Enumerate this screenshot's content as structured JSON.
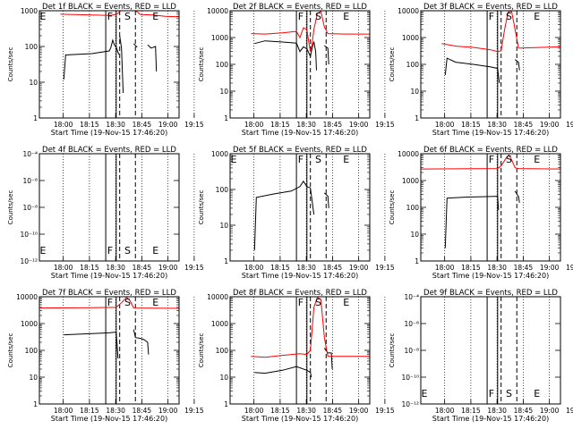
{
  "chart_data": [
    {
      "type": "line",
      "panel": 1,
      "title": "Det 1f BLACK = Events, RED = LLD",
      "xlabel": "Start Time (19-Nov-15 17:46:20)",
      "ylabel": "Counts/sec",
      "scale": "log",
      "ylim": [
        1,
        1000
      ],
      "yticks": [
        "1",
        "10",
        "100",
        "1000"
      ],
      "xticks": [
        "18:00",
        "18:15",
        "18:30",
        "18:45",
        "19:00",
        "19:15"
      ],
      "marker_labels": [
        "E",
        "F",
        "S",
        "E"
      ],
      "series": [
        {
          "name": "Events",
          "color": "#000000",
          "segments": [
            [
              [
                14.0,
                12
              ],
              [
                15.0,
                58
              ],
              [
                30.0,
                63
              ],
              [
                40.0,
                75
              ],
              [
                41.0,
                95
              ],
              [
                42.0,
                150
              ],
              [
                43.0,
                110
              ],
              [
                44.0,
                95
              ],
              [
                45.5,
                60
              ]
            ],
            [
              [
                46.0,
                200
              ],
              [
                47.0,
                90
              ],
              [
                48.0,
                5
              ]
            ],
            [
              [
                54.0,
                120
              ],
              [
                56.0,
                95
              ]
            ],
            [
              [
                62.0,
                110
              ],
              [
                64.0,
                90
              ],
              [
                66.5,
                100
              ],
              [
                67.0,
                20
              ]
            ]
          ]
        },
        {
          "name": "LLD",
          "color": "#ff0000",
          "segments": [
            [
              [
                12.0,
                800
              ],
              [
                20.0,
                780
              ],
              [
                30.0,
                760
              ],
              [
                40.0,
                740
              ],
              [
                43.0,
                770
              ],
              [
                45.0,
                850
              ],
              [
                46.0,
                950
              ],
              [
                46.5,
                1000
              ]
            ],
            [
              [
                55.0,
                1000
              ],
              [
                58.0,
                780
              ],
              [
                65.0,
                760
              ],
              [
                72.0,
                700
              ],
              [
                80.0,
                680
              ]
            ]
          ]
        }
      ]
    },
    {
      "type": "line",
      "panel": 2,
      "title": "Det 2f BLACK = Events, RED = LLD",
      "xlabel": "Start Time (19-Nov-15 17:46:20)",
      "ylabel": "Counts/sec",
      "scale": "log",
      "ylim": [
        1,
        10000
      ],
      "yticks": [
        "1",
        "10",
        "100",
        "1000",
        "10000"
      ],
      "xticks": [
        "18:00",
        "18:15",
        "18:30",
        "18:45",
        "19:00",
        "19:15"
      ],
      "marker_labels": [
        "F",
        "S",
        "E"
      ],
      "series": [
        {
          "name": "Events",
          "color": "#000000",
          "segments": [
            [
              [
                14.0,
                600
              ],
              [
                20.0,
                750
              ],
              [
                30.0,
                680
              ],
              [
                38.0,
                620
              ],
              [
                40.0,
                300
              ],
              [
                42.0,
                450
              ],
              [
                44.0,
                380
              ],
              [
                46.0,
                200
              ],
              [
                47.0,
                400
              ],
              [
                48.0,
                700
              ],
              [
                49.0,
                300
              ],
              [
                49.5,
                60
              ]
            ],
            [
              [
                54.0,
                500
              ],
              [
                56.0,
                400
              ],
              [
                56.5,
                100
              ]
            ]
          ]
        },
        {
          "name": "LLD",
          "color": "#ff0000",
          "segments": [
            [
              [
                12.0,
                1400
              ],
              [
                20.0,
                1350
              ],
              [
                30.0,
                1500
              ],
              [
                38.0,
                1700
              ],
              [
                40.0,
                1000
              ],
              [
                42.0,
                2300
              ],
              [
                44.0,
                2000
              ],
              [
                45.0,
                700
              ],
              [
                46.0,
                300
              ],
              [
                47.0,
                600
              ],
              [
                48.0,
                2000
              ],
              [
                50.0,
                8000
              ],
              [
                52.0,
                9500
              ],
              [
                54.0,
                2500
              ],
              [
                56.0,
                1400
              ],
              [
                65.0,
                1350
              ],
              [
                80.0,
                1350
              ]
            ]
          ]
        }
      ]
    },
    {
      "type": "line",
      "panel": 3,
      "title": "Det 3f BLACK = Events, RED = LLD",
      "xlabel": "Start Time (19-Nov-15 17:46:20)",
      "ylabel": "Counts/sec",
      "scale": "log",
      "ylim": [
        1,
        10000
      ],
      "yticks": [
        "1",
        "10",
        "100",
        "1000",
        "10000"
      ],
      "xticks": [
        "18:00",
        "18:15",
        "18:30",
        "18:45",
        "19:00",
        "19:15"
      ],
      "marker_labels": [
        "F",
        "S",
        "E"
      ],
      "series": [
        {
          "name": "Events",
          "color": "#000000",
          "segments": [
            [
              [
                14.0,
                40
              ],
              [
                15.0,
                170
              ],
              [
                20.0,
                120
              ],
              [
                30.0,
                100
              ],
              [
                40.0,
                80
              ],
              [
                44.0,
                70
              ],
              [
                45.0,
                20
              ]
            ],
            [
              [
                54.0,
                150
              ],
              [
                56.0,
                120
              ],
              [
                56.5,
                60
              ]
            ]
          ]
        },
        {
          "name": "LLD",
          "color": "#ff0000",
          "segments": [
            [
              [
                12.0,
                600
              ],
              [
                20.0,
                480
              ],
              [
                30.0,
                430
              ],
              [
                40.0,
                350
              ],
              [
                44.0,
                300
              ],
              [
                46.0,
                320
              ],
              [
                48.0,
                2000
              ],
              [
                50.0,
                9000
              ],
              [
                52.0,
                9500
              ],
              [
                54.0,
                2000
              ],
              [
                56.0,
                400
              ],
              [
                65.0,
                420
              ],
              [
                80.0,
                450
              ]
            ]
          ]
        }
      ]
    },
    {
      "type": "line",
      "panel": 4,
      "title": "Det 4f BLACK = Events, RED = LLD",
      "xlabel": "Start Time (19-Nov-15 17:46:20)",
      "ylabel": "Counts/sec",
      "scale": "log",
      "ylim": [
        -12,
        -4
      ],
      "yticks": [
        "10⁻¹²",
        "10⁻¹⁰",
        "10⁻⁸",
        "10⁻⁶",
        "10⁻⁴"
      ],
      "xticks": [
        "18:00",
        "18:15",
        "18:30",
        "18:45",
        "19:00",
        "19:15"
      ],
      "marker_labels": [
        "E",
        "F",
        "S",
        "E"
      ],
      "series": []
    },
    {
      "type": "line",
      "panel": 5,
      "title": "Det 5f BLACK = Events, RED = LLD",
      "xlabel": "Start Time (19-Nov-15 17:46:20)",
      "ylabel": "Counts/sec",
      "scale": "log",
      "ylim": [
        1,
        1000
      ],
      "yticks": [
        "1",
        "10",
        "100",
        "1000"
      ],
      "xticks": [
        "18:00",
        "18:15",
        "18:30",
        "18:45",
        "19:00",
        "19:15"
      ],
      "marker_labels": [
        "E",
        "F",
        "S",
        "E"
      ],
      "series": [
        {
          "name": "Events",
          "color": "#000000",
          "segments": [
            [
              [
                14.0,
                2
              ],
              [
                15.0,
                60
              ],
              [
                25.0,
                75
              ],
              [
                35.0,
                90
              ],
              [
                40.0,
                120
              ],
              [
                42.0,
                170
              ],
              [
                44.0,
                120
              ],
              [
                46.0,
                110
              ],
              [
                48.0,
                20
              ]
            ],
            [
              [
                54.0,
                80
              ],
              [
                56.0,
                65
              ],
              [
                56.5,
                30
              ]
            ]
          ]
        }
      ]
    },
    {
      "type": "line",
      "panel": 6,
      "title": "Det 6f BLACK = Events, RED = LLD",
      "xlabel": "Start Time (19-Nov-15 17:46:20)",
      "ylabel": "Counts/sec",
      "scale": "log",
      "ylim": [
        1,
        10000
      ],
      "yticks": [
        "1",
        "10",
        "100",
        "1000",
        "10000"
      ],
      "xticks": [
        "18:00",
        "18:15",
        "18:30",
        "18:45",
        "19:00",
        "19:15"
      ],
      "marker_labels": [
        "F",
        "S",
        "E"
      ],
      "series": [
        {
          "name": "Events",
          "color": "#000000",
          "segments": [
            [
              [
                14.0,
                3
              ],
              [
                15.0,
                220
              ],
              [
                25.0,
                240
              ],
              [
                35.0,
                250
              ],
              [
                44.0,
                260
              ],
              [
                44.5,
                80
              ]
            ],
            [
              [
                54.0,
                400
              ],
              [
                56.0,
                250
              ],
              [
                56.5,
                150
              ]
            ]
          ]
        },
        {
          "name": "LLD",
          "color": "#ff0000",
          "segments": [
            [
              [
                0.0,
                2700
              ],
              [
                30.0,
                2750
              ],
              [
                44.0,
                2800
              ],
              [
                46.0,
                3500
              ],
              [
                49.0,
                7000
              ],
              [
                50.5,
                9000
              ],
              [
                52.0,
                6000
              ],
              [
                54.0,
                3000
              ],
              [
                56.0,
                2800
              ],
              [
                80.0,
                2700
              ]
            ]
          ]
        }
      ]
    },
    {
      "type": "line",
      "panel": 7,
      "title": "Det 7f BLACK = Events, RED = LLD",
      "xlabel": "Start Time (19-Nov-15 17:46:20)",
      "ylabel": "Counts/sec",
      "scale": "log",
      "ylim": [
        1,
        10000
      ],
      "yticks": [
        "1",
        "10",
        "100",
        "1000",
        "10000"
      ],
      "xticks": [
        "18:00",
        "18:15",
        "18:30",
        "18:45",
        "19:00",
        "19:15"
      ],
      "marker_labels": [
        "F",
        "S",
        "E"
      ],
      "series": [
        {
          "name": "Events",
          "color": "#000000",
          "segments": [
            [
              [
                14.0,
                380
              ],
              [
                30.0,
                420
              ],
              [
                40.0,
                450
              ],
              [
                44.0,
                480
              ],
              [
                45.0,
                50
              ]
            ],
            [
              [
                54.0,
                600
              ],
              [
                55.0,
                300
              ],
              [
                58.0,
                280
              ],
              [
                60.0,
                250
              ],
              [
                62.0,
                200
              ],
              [
                62.5,
                70
              ]
            ]
          ]
        },
        {
          "name": "LLD",
          "color": "#ff0000",
          "segments": [
            [
              [
                0.0,
                3800
              ],
              [
                30.0,
                3900
              ],
              [
                44.0,
                4000
              ],
              [
                47.0,
                6000
              ],
              [
                50.0,
                9500
              ],
              [
                52.0,
                7000
              ],
              [
                54.0,
                3800
              ],
              [
                80.0,
                3700
              ]
            ]
          ]
        }
      ]
    },
    {
      "type": "line",
      "panel": 8,
      "title": "Det 8f BLACK = Events, RED = LLD",
      "xlabel": "Start Time (19-Nov-15 17:46:20)",
      "ylabel": "Counts/sec",
      "scale": "log",
      "ylim": [
        1,
        10000
      ],
      "yticks": [
        "1",
        "10",
        "100",
        "1000",
        "10000"
      ],
      "xticks": [
        "18:00",
        "18:15",
        "18:30",
        "18:45",
        "19:00",
        "19:15"
      ],
      "marker_labels": [
        "F",
        "S",
        "E"
      ],
      "series": [
        {
          "name": "Events",
          "color": "#000000",
          "segments": [
            [
              [
                14.0,
                15
              ],
              [
                20.0,
                14
              ],
              [
                30.0,
                18
              ],
              [
                38.0,
                25
              ],
              [
                44.0,
                18
              ],
              [
                46.0,
                15
              ],
              [
                46.5,
                10
              ]
            ],
            [
              [
                54.0,
                120
              ],
              [
                56.0,
                80
              ],
              [
                58.0,
                80
              ],
              [
                58.5,
                20
              ]
            ]
          ]
        },
        {
          "name": "LLD",
          "color": "#ff0000",
          "segments": [
            [
              [
                12.0,
                60
              ],
              [
                20.0,
                55
              ],
              [
                30.0,
                65
              ],
              [
                40.0,
                75
              ],
              [
                44.0,
                70
              ],
              [
                46.0,
                100
              ],
              [
                48.0,
                4000
              ],
              [
                50.0,
                9500
              ],
              [
                52.0,
                8000
              ],
              [
                54.0,
                300
              ],
              [
                56.0,
                60
              ],
              [
                65.0,
                60
              ],
              [
                80.0,
                60
              ]
            ]
          ]
        }
      ]
    },
    {
      "type": "line",
      "panel": 9,
      "title": "Det 9f BLACK = Events, RED = LLD",
      "xlabel": "Start Time (19-Nov-15 17:46:20)",
      "ylabel": "Counts/sec",
      "scale": "log",
      "ylim": [
        -12,
        -4
      ],
      "yticks": [
        "10⁻¹²",
        "10⁻¹⁰",
        "10⁻⁸",
        "10⁻⁶",
        "10⁻⁴"
      ],
      "xticks": [
        "18:00",
        "18:15",
        "18:30",
        "18:45",
        "19:00",
        "19:15"
      ],
      "marker_labels": [
        "E",
        "F",
        "S",
        "E"
      ],
      "series": []
    }
  ]
}
